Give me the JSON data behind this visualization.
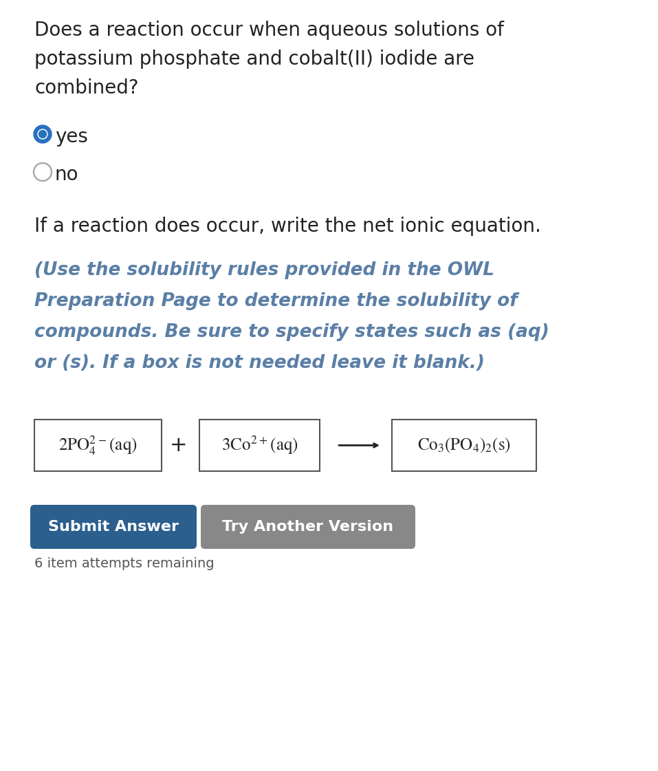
{
  "bg_color": "#ffffff",
  "question_text_lines": [
    "Does a reaction occur when aqueous solutions of",
    "potassium phosphate and cobalt(II) iodide are",
    "combined?"
  ],
  "yes_text": "yes",
  "no_text": "no",
  "instruction_text": "If a reaction does occur, write the net ionic equation.",
  "italic_lines": [
    "(Use the solubility rules provided in the OWL",
    "Preparation Page to determine the solubility of",
    "compounds. Be sure to specify states such as (aq)",
    "or (s). If a box is not needed leave it blank.)"
  ],
  "italic_color": "#5b7fa6",
  "radio_selected_color": "#2970c0",
  "radio_border_color": "#aaaaaa",
  "submit_btn_color": "#2b5f8e",
  "try_btn_color": "#888888",
  "btn_text_color": "#ffffff",
  "submit_btn_text": "Submit Answer",
  "try_btn_text": "Try Another Version",
  "attempts_text": "6 item attempts remaining",
  "box_color": "#555555",
  "text_color": "#222222"
}
